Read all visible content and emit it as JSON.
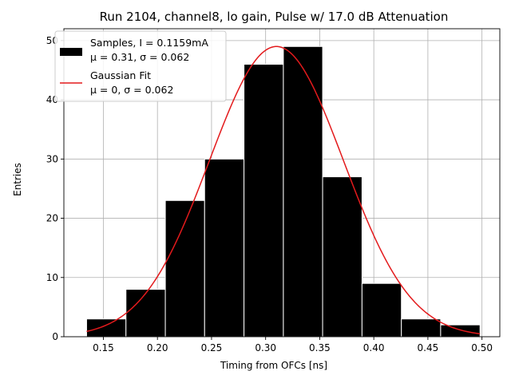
{
  "chart_data": {
    "type": "bar",
    "title": "Run 2104, channel8, lo gain, Pulse w/ 17.0 dB Attenuation",
    "xlabel": "Timing from OFCs [ns]",
    "ylabel": "Entries",
    "xlim": [
      0.1135,
      0.5165
    ],
    "ylim": [
      0,
      52
    ],
    "xticks": [
      0.15,
      0.2,
      0.25,
      0.3,
      0.35,
      0.4,
      0.45,
      0.5
    ],
    "xtick_labels": [
      "0.15",
      "0.20",
      "0.25",
      "0.30",
      "0.35",
      "0.40",
      "0.45",
      "0.50"
    ],
    "yticks": [
      0,
      10,
      20,
      30,
      40,
      50
    ],
    "ytick_labels": [
      "0",
      "10",
      "20",
      "30",
      "40",
      "50"
    ],
    "grid": true,
    "legend_position": "top-left",
    "histogram": {
      "bin_edges": [
        0.1345,
        0.1709,
        0.2073,
        0.2436,
        0.28,
        0.3164,
        0.3527,
        0.3891,
        0.4255,
        0.4618,
        0.4982
      ],
      "counts": [
        3,
        8,
        23,
        30,
        46,
        49,
        27,
        9,
        3,
        2
      ],
      "color": "#000000",
      "edge_color": "#ffffff",
      "legend_line1": "Samples, I = 0.1159mA",
      "legend_line2": "μ = 0.31, σ = 0.062"
    },
    "fit": {
      "mu": 0.31,
      "sigma": 0.062,
      "amplitude": 49,
      "x_range": [
        0.1345,
        0.4982
      ],
      "color": "#e31a1c",
      "legend_line1": "Gaussian Fit",
      "legend_line2": "μ = 0, σ = 0.062"
    }
  }
}
